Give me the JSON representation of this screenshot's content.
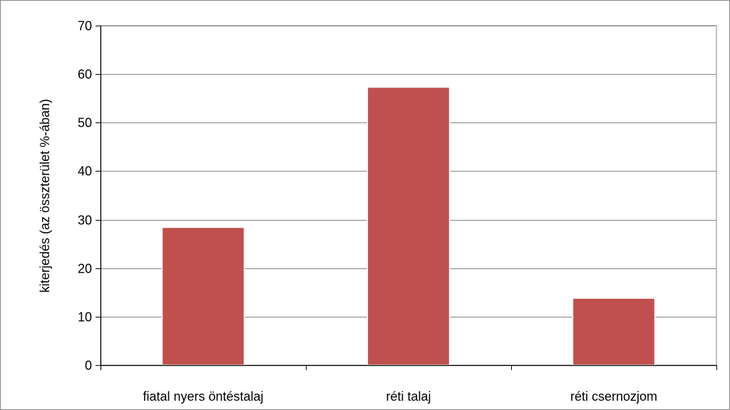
{
  "chart_data": {
    "type": "bar",
    "title": "",
    "xlabel": "",
    "ylabel": "kiterjedés (az összterület %-ában)",
    "categories": [
      "fiatal nyers öntéstalaj",
      "réti talaj",
      "réti csernozjom"
    ],
    "values": [
      28.4,
      57.3,
      13.8
    ],
    "ylim": [
      0,
      70
    ],
    "yticks": [
      0,
      10,
      20,
      30,
      40,
      50,
      60,
      70
    ],
    "grid": true,
    "legend": "none",
    "colors": {
      "bar": "#c0504d",
      "grid": "#868686",
      "axis": "#000000",
      "frame": "#868686"
    }
  }
}
